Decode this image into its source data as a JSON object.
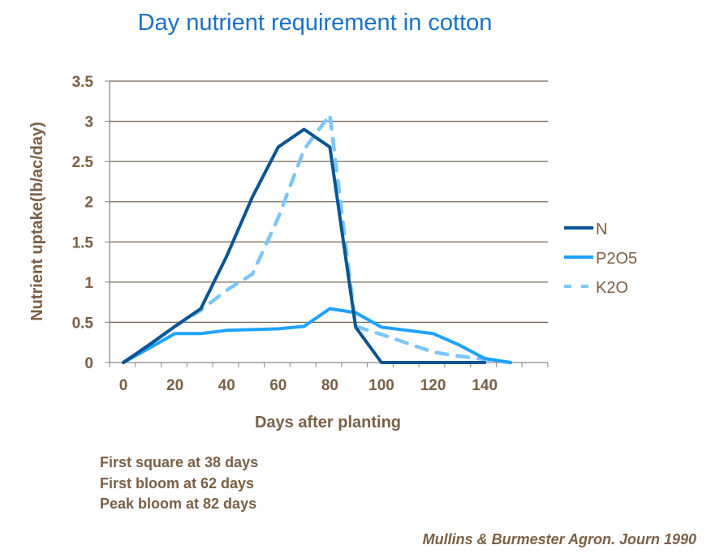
{
  "chart_data": {
    "type": "line",
    "title": "Day nutrient requirement in cotton",
    "xlabel": "Days after planting",
    "ylabel": "Nutrient uptake(lb/ac/day)",
    "xlim": [
      -5,
      165
    ],
    "ylim": [
      0,
      3.5
    ],
    "x_ticks": [
      "0",
      "20",
      "40",
      "60",
      "80",
      "100",
      "120",
      "140"
    ],
    "y_ticks": [
      "0",
      "0.5",
      "1",
      "1.5",
      "2",
      "2.5",
      "3",
      "3.5"
    ],
    "grid": "horizontal",
    "legend_position": "right",
    "series": [
      {
        "name": "N",
        "color": "#0b5494",
        "style": "solid",
        "x": [
          0,
          10,
          20,
          30,
          40,
          50,
          60,
          70,
          80,
          90,
          100,
          110,
          120,
          130,
          140
        ],
        "y": [
          0,
          0.22,
          0.45,
          0.67,
          1.32,
          2.06,
          2.68,
          2.9,
          2.68,
          0.44,
          0,
          0,
          0,
          0,
          0
        ]
      },
      {
        "name": "P2O5",
        "color": "#1ea2ff",
        "style": "solid",
        "x": [
          0,
          10,
          20,
          30,
          40,
          50,
          60,
          70,
          80,
          90,
          100,
          110,
          120,
          130,
          140,
          150
        ],
        "y": [
          0,
          0.18,
          0.36,
          0.36,
          0.4,
          0.41,
          0.42,
          0.45,
          0.67,
          0.62,
          0.44,
          0.4,
          0.36,
          0.22,
          0.05,
          0
        ]
      },
      {
        "name": "K2O",
        "color": "#7cc6fa",
        "style": "dashed",
        "x": [
          0,
          10,
          20,
          30,
          40,
          50,
          60,
          70,
          80,
          90,
          100,
          110,
          120,
          130,
          140,
          150
        ],
        "y": [
          0,
          0.22,
          0.45,
          0.65,
          0.9,
          1.1,
          1.8,
          2.65,
          3.08,
          0.45,
          0.35,
          0.24,
          0.13,
          0.08,
          0.04,
          0
        ]
      }
    ]
  },
  "notes": [
    "First square at 38 days",
    "First bloom at 62 days",
    "Peak bloom at 82 days"
  ],
  "source": "Mullins & Burmester Agron. Journ 1990"
}
